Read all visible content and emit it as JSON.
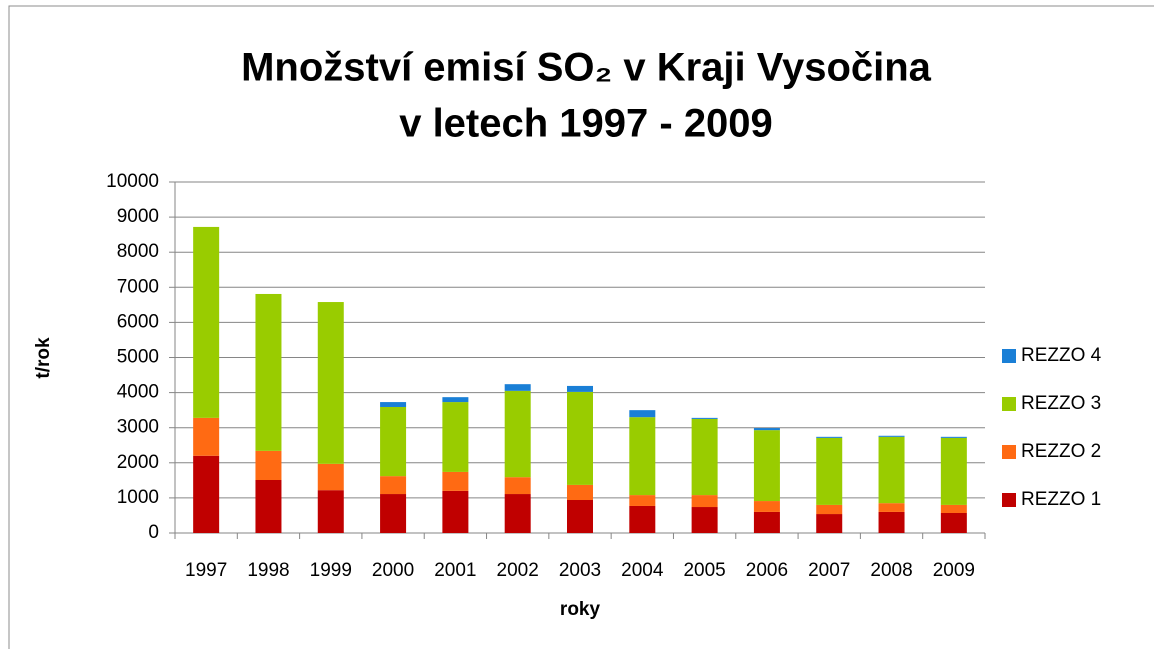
{
  "chart_data": {
    "type": "stacked_bar",
    "title": [
      "Množství emisí SO₂ v Kraji Vysočina",
      "v letech 1997 - 2009"
    ],
    "x_label": "roky",
    "y_label": "t/rok",
    "categories": [
      "1997",
      "1998",
      "1999",
      "2000",
      "2001",
      "2002",
      "2003",
      "2004",
      "2005",
      "2006",
      "2007",
      "2008",
      "2009"
    ],
    "series": [
      {
        "name": "REZZO 1",
        "color": "#c00000",
        "values": [
          2200,
          1510,
          1220,
          1110,
          1200,
          1110,
          940,
          770,
          740,
          600,
          540,
          600,
          570
        ]
      },
      {
        "name": "REZZO 2",
        "color": "#ff6a13",
        "values": [
          1080,
          830,
          750,
          510,
          540,
          480,
          430,
          310,
          340,
          310,
          260,
          250,
          230
        ]
      },
      {
        "name": "REZZO 3",
        "color": "#99cc00",
        "values": [
          5440,
          4470,
          4610,
          1970,
          1990,
          2460,
          2650,
          2220,
          2170,
          2020,
          1910,
          1890,
          1910
        ]
      },
      {
        "name": "REZZO 4",
        "color": "#1a7fd6",
        "values": [
          0,
          0,
          0,
          140,
          140,
          190,
          170,
          200,
          30,
          60,
          30,
          30,
          30
        ]
      }
    ],
    "ylim": [
      0,
      10000
    ],
    "yticks": [
      0,
      1000,
      2000,
      3000,
      4000,
      5000,
      6000,
      7000,
      8000,
      9000,
      10000
    ],
    "grid": true,
    "legend": "right"
  }
}
